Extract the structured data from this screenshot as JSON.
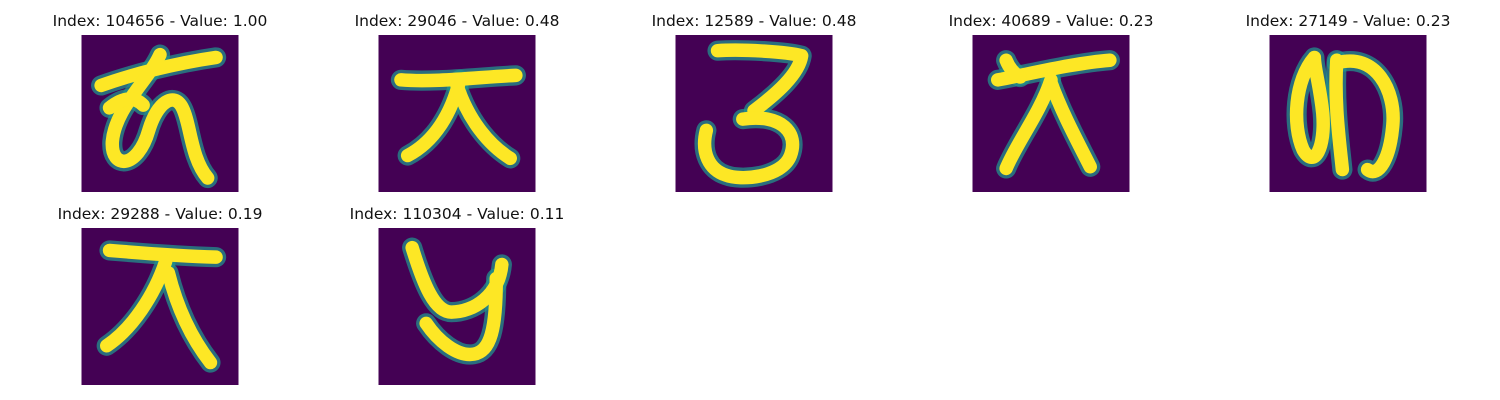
{
  "figure": {
    "title_prefix": "Index:",
    "value_prefix": "Value:",
    "separator": "-"
  },
  "chart_data": {
    "type": "image-grid",
    "title": "",
    "grid": {
      "rows": 2,
      "cols": 5
    },
    "colormap": "viridis",
    "colors": {
      "background": "#440154",
      "stroke": "#fde725",
      "edge": "#21918c"
    },
    "items": [
      {
        "index": "104656",
        "value": "1.00",
        "glyph": "hira-wo"
      },
      {
        "index": "29046",
        "value": "0.48",
        "glyph": "kanji-dai"
      },
      {
        "index": "12589",
        "value": "0.48",
        "glyph": "hira-ro"
      },
      {
        "index": "40689",
        "value": "0.23",
        "glyph": "kanji-ten"
      },
      {
        "index": "27149",
        "value": "0.23",
        "glyph": "hira-me"
      },
      {
        "index": "29288",
        "value": "0.19",
        "glyph": "kanji-ten-2"
      },
      {
        "index": "110304",
        "value": "0.11",
        "glyph": "hira-ku"
      }
    ]
  }
}
